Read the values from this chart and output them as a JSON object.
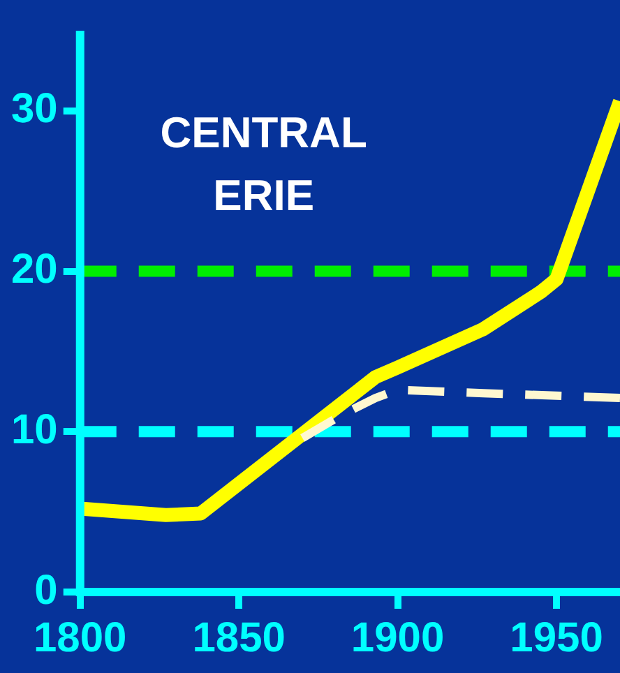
{
  "chart_data": {
    "type": "line",
    "title": "CENTRAL ERIE",
    "xlim": [
      1800,
      1970
    ],
    "ylim": [
      0,
      35
    ],
    "xticks": [
      1800,
      1850,
      1900,
      1950
    ],
    "yticks": [
      0,
      10,
      20,
      30
    ],
    "grid": false,
    "legend": false,
    "marker": "none",
    "series": [
      {
        "color": "#ffff00",
        "line_style": "solid",
        "x": [
          1800,
          1827,
          1838,
          1893,
          1900,
          1927,
          1945,
          1950,
          1970
        ],
        "values": [
          5.2,
          4.8,
          4.9,
          13.4,
          14,
          16.4,
          18.7,
          19.5,
          30.6
        ]
      },
      {
        "color": "#fff8d0",
        "line_style": "dashed",
        "x": [
          1870,
          1882,
          1893,
          1900,
          1927,
          1970
        ],
        "values": [
          9.6,
          11,
          12.1,
          12.6,
          12.4,
          12.1
        ]
      }
    ],
    "ref_lines": [
      {
        "axis": "y",
        "value": 20,
        "color": "#00ee00",
        "line_style": "dashed"
      },
      {
        "axis": "y",
        "value": 10,
        "color": "#00ffff",
        "line_style": "dashed"
      }
    ]
  }
}
